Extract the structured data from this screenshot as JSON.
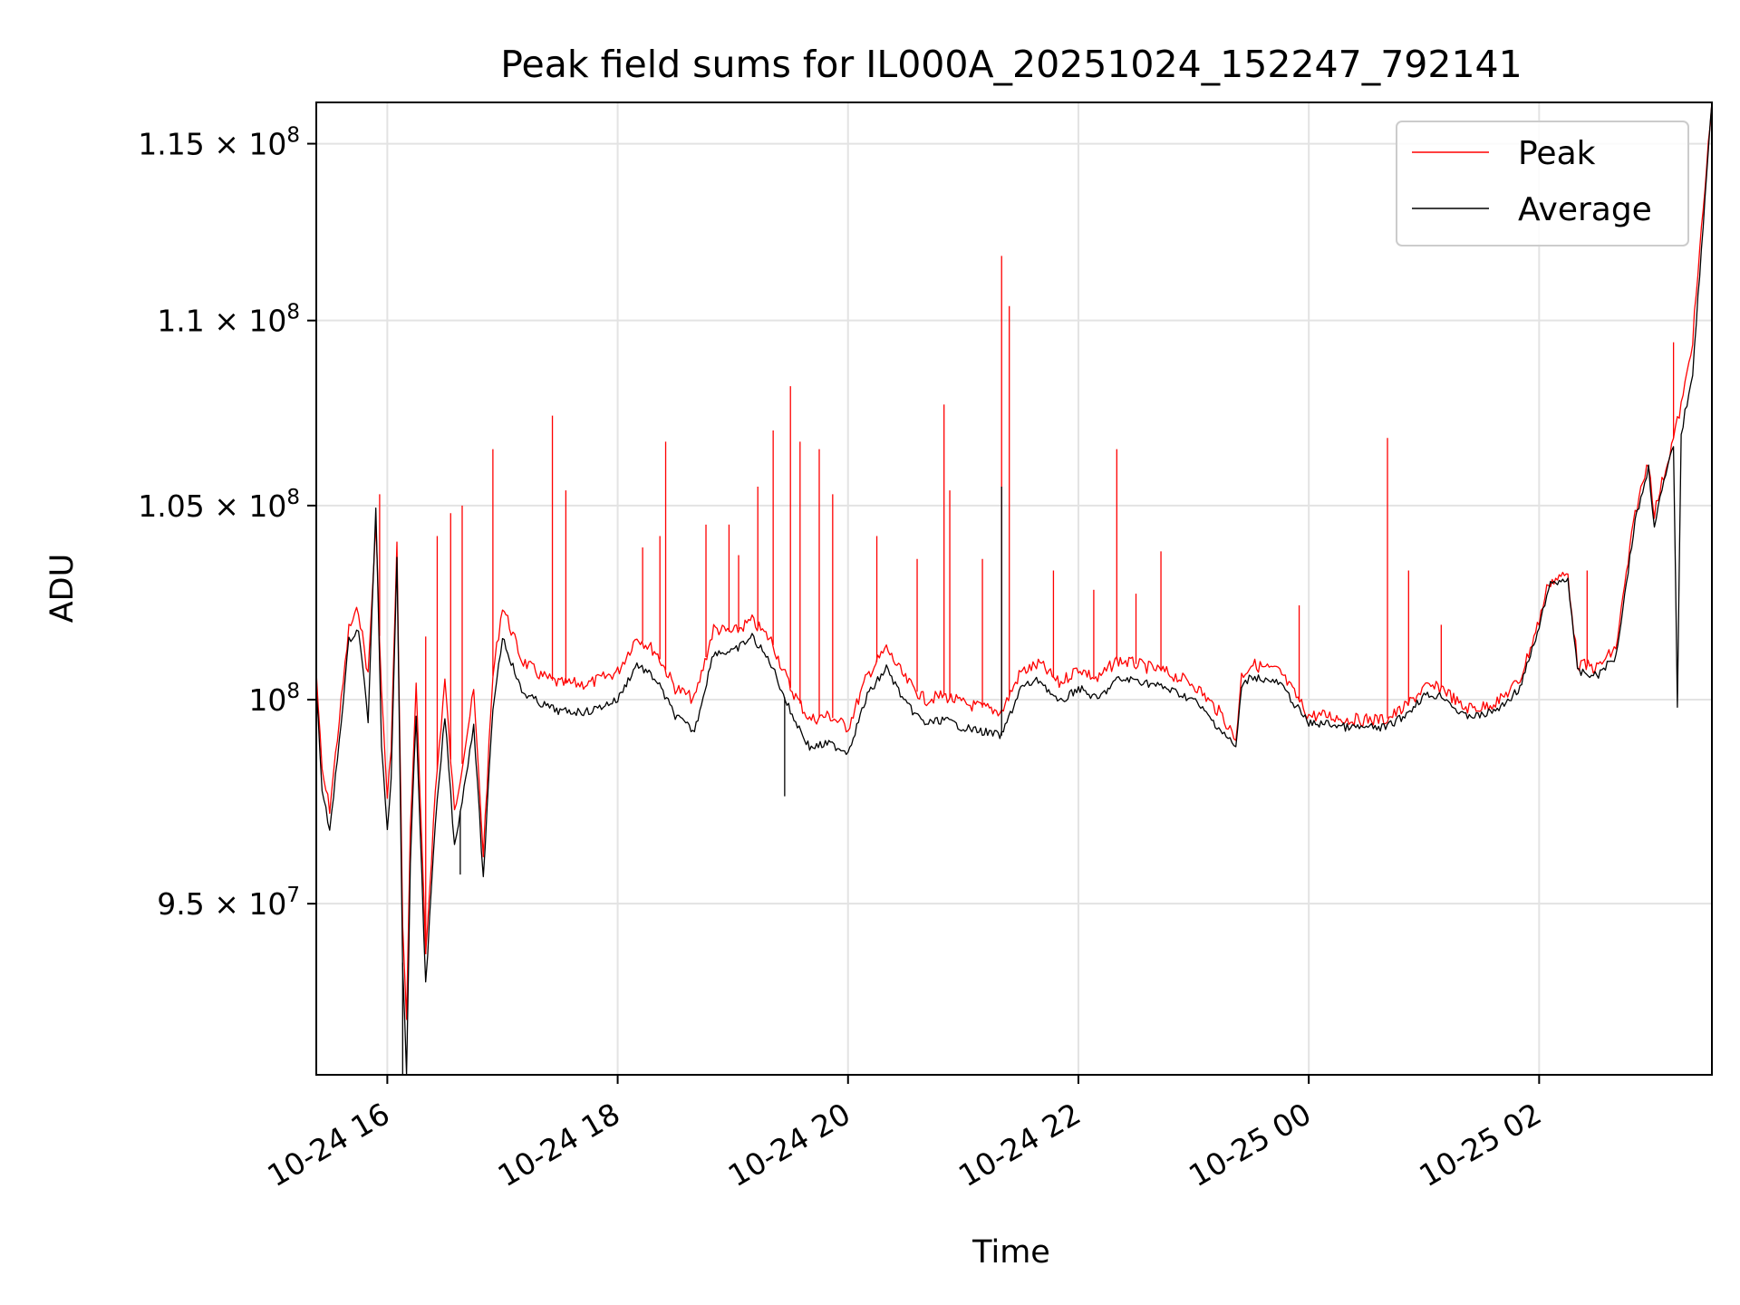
{
  "chart_data": {
    "type": "line",
    "title": "Peak field sums for IL000A_20251024_152247_792141",
    "xlabel": "Time",
    "ylabel": "ADU",
    "x_range": [
      "2025-10-24 15:23",
      "2025-10-25 03:30"
    ],
    "ylim": [
      91000000,
      116200000
    ],
    "grid": true,
    "legend_position": "top-right",
    "x_ticks": [
      {
        "value": "2025-10-24 16:00",
        "label": "10-24 16"
      },
      {
        "value": "2025-10-24 18:00",
        "label": "10-24 18"
      },
      {
        "value": "2025-10-24 20:00",
        "label": "10-24 20"
      },
      {
        "value": "2025-10-24 22:00",
        "label": "10-24 22"
      },
      {
        "value": "2025-10-25 00:00",
        "label": "10-25 00"
      },
      {
        "value": "2025-10-25 02:00",
        "label": "10-25 02"
      }
    ],
    "y_ticks": [
      {
        "value": 95000000,
        "mantissa": "9.5 × 10",
        "exp": "7"
      },
      {
        "value": 100000000,
        "mantissa": "10",
        "exp": "8"
      },
      {
        "value": 105000000,
        "mantissa": "1.05 × 10",
        "exp": "8"
      },
      {
        "value": 110000000,
        "mantissa": "1.1 × 10",
        "exp": "8"
      },
      {
        "value": 115000000,
        "mantissa": "1.15 × 10",
        "exp": "8"
      }
    ],
    "series": [
      {
        "name": "Peak",
        "color": "#ff0000",
        "points": [
          [
            "2025-10-24 15:23",
            100700000
          ],
          [
            "2025-10-24 15:26",
            98200000
          ],
          [
            "2025-10-24 15:30",
            97300000
          ],
          [
            "2025-10-24 15:35",
            99500000
          ],
          [
            "2025-10-24 15:40",
            101800000
          ],
          [
            "2025-10-24 15:45",
            102300000
          ],
          [
            "2025-10-24 15:50",
            100600000
          ],
          [
            "2025-10-24 15:54",
            104500000
          ],
          [
            "2025-10-24 15:57",
            100200000
          ],
          [
            "2025-10-24 16:00",
            97500000
          ],
          [
            "2025-10-24 16:02",
            98800000
          ],
          [
            "2025-10-24 16:05",
            103900000
          ],
          [
            "2025-10-24 16:08",
            94600000
          ],
          [
            "2025-10-24 16:10",
            92200000
          ],
          [
            "2025-10-24 16:12",
            96800000
          ],
          [
            "2025-10-24 16:15",
            100300000
          ],
          [
            "2025-10-24 16:20",
            93800000
          ],
          [
            "2025-10-24 16:25",
            97700000
          ],
          [
            "2025-10-24 16:30",
            100500000
          ],
          [
            "2025-10-24 16:35",
            97200000
          ],
          [
            "2025-10-24 16:40",
            98700000
          ],
          [
            "2025-10-24 16:45",
            100200000
          ],
          [
            "2025-10-24 16:50",
            96200000
          ],
          [
            "2025-10-24 16:55",
            100600000
          ],
          [
            "2025-10-24 17:00",
            102400000
          ],
          [
            "2025-10-24 17:10",
            101000000
          ],
          [
            "2025-10-24 17:20",
            100600000
          ],
          [
            "2025-10-24 17:30",
            100400000
          ],
          [
            "2025-10-24 17:45",
            100400000
          ],
          [
            "2025-10-24 18:00",
            100700000
          ],
          [
            "2025-10-24 18:10",
            101600000
          ],
          [
            "2025-10-24 18:20",
            101200000
          ],
          [
            "2025-10-24 18:30",
            100300000
          ],
          [
            "2025-10-24 18:40",
            100000000
          ],
          [
            "2025-10-24 18:50",
            101800000
          ],
          [
            "2025-10-24 19:00",
            101700000
          ],
          [
            "2025-10-24 19:10",
            102000000
          ],
          [
            "2025-10-24 19:20",
            101500000
          ],
          [
            "2025-10-24 19:30",
            100300000
          ],
          [
            "2025-10-24 19:40",
            99500000
          ],
          [
            "2025-10-24 19:50",
            99600000
          ],
          [
            "2025-10-24 20:00",
            99300000
          ],
          [
            "2025-10-24 20:10",
            100600000
          ],
          [
            "2025-10-24 20:20",
            101300000
          ],
          [
            "2025-10-24 20:30",
            100500000
          ],
          [
            "2025-10-24 20:40",
            100000000
          ],
          [
            "2025-10-24 20:50",
            100100000
          ],
          [
            "2025-10-24 21:00",
            99900000
          ],
          [
            "2025-10-24 21:10",
            99800000
          ],
          [
            "2025-10-24 21:20",
            99700000
          ],
          [
            "2025-10-24 21:30",
            100700000
          ],
          [
            "2025-10-24 21:40",
            100900000
          ],
          [
            "2025-10-24 21:50",
            100400000
          ],
          [
            "2025-10-24 22:00",
            100800000
          ],
          [
            "2025-10-24 22:10",
            100500000
          ],
          [
            "2025-10-24 22:20",
            101000000
          ],
          [
            "2025-10-24 22:30",
            100900000
          ],
          [
            "2025-10-24 22:45",
            100700000
          ],
          [
            "2025-10-24 23:00",
            100400000
          ],
          [
            "2025-10-24 23:15",
            99600000
          ],
          [
            "2025-10-24 23:22",
            99000000
          ],
          [
            "2025-10-24 23:25",
            100600000
          ],
          [
            "2025-10-24 23:30",
            100900000
          ],
          [
            "2025-10-24 23:45",
            100700000
          ],
          [
            "2025-10-25 00:00",
            99600000
          ],
          [
            "2025-10-25 00:10",
            99600000
          ],
          [
            "2025-10-25 00:20",
            99500000
          ],
          [
            "2025-10-25 00:30",
            99500000
          ],
          [
            "2025-10-25 00:40",
            99500000
          ],
          [
            "2025-10-25 00:50",
            99800000
          ],
          [
            "2025-10-25 01:00",
            100300000
          ],
          [
            "2025-10-25 01:10",
            100300000
          ],
          [
            "2025-10-25 01:20",
            99800000
          ],
          [
            "2025-10-25 01:30",
            99800000
          ],
          [
            "2025-10-25 01:40",
            100000000
          ],
          [
            "2025-10-25 01:50",
            100500000
          ],
          [
            "2025-10-25 02:00",
            102000000
          ],
          [
            "2025-10-25 02:05",
            103000000
          ],
          [
            "2025-10-25 02:15",
            103200000
          ],
          [
            "2025-10-25 02:20",
            100900000
          ],
          [
            "2025-10-25 02:30",
            100800000
          ],
          [
            "2025-10-25 02:40",
            101300000
          ],
          [
            "2025-10-25 02:50",
            104800000
          ],
          [
            "2025-10-25 02:57",
            106200000
          ],
          [
            "2025-10-25 03:00",
            104800000
          ],
          [
            "2025-10-25 03:05",
            105800000
          ],
          [
            "2025-10-25 03:10",
            106800000
          ],
          [
            "2025-10-25 03:15",
            107900000
          ],
          [
            "2025-10-25 03:20",
            109500000
          ],
          [
            "2025-10-25 03:30",
            116200000
          ]
        ],
        "spikes": [
          [
            "2025-10-24 15:56",
            105300000
          ],
          [
            "2025-10-24 16:20",
            101600000
          ],
          [
            "2025-10-24 16:26",
            104200000
          ],
          [
            "2025-10-24 16:33",
            104800000
          ],
          [
            "2025-10-24 16:39",
            105000000
          ],
          [
            "2025-10-24 16:55",
            106500000
          ],
          [
            "2025-10-24 17:26",
            107400000
          ],
          [
            "2025-10-24 17:33",
            105400000
          ],
          [
            "2025-10-24 18:13",
            103900000
          ],
          [
            "2025-10-24 18:22",
            104200000
          ],
          [
            "2025-10-24 18:25",
            106700000
          ],
          [
            "2025-10-24 18:46",
            104500000
          ],
          [
            "2025-10-24 18:58",
            104500000
          ],
          [
            "2025-10-24 19:03",
            103700000
          ],
          [
            "2025-10-24 19:13",
            105500000
          ],
          [
            "2025-10-24 19:21",
            107000000
          ],
          [
            "2025-10-24 19:30",
            108200000
          ],
          [
            "2025-10-24 19:35",
            106700000
          ],
          [
            "2025-10-24 19:45",
            106500000
          ],
          [
            "2025-10-24 19:52",
            105300000
          ],
          [
            "2025-10-24 20:15",
            104200000
          ],
          [
            "2025-10-24 20:36",
            103600000
          ],
          [
            "2025-10-24 20:50",
            107700000
          ],
          [
            "2025-10-24 20:53",
            105400000
          ],
          [
            "2025-10-24 21:10",
            103600000
          ],
          [
            "2025-10-24 21:20",
            111800000
          ],
          [
            "2025-10-24 21:24",
            110400000
          ],
          [
            "2025-10-24 21:47",
            103300000
          ],
          [
            "2025-10-24 22:08",
            102800000
          ],
          [
            "2025-10-24 22:20",
            106500000
          ],
          [
            "2025-10-24 22:30",
            102700000
          ],
          [
            "2025-10-24 22:43",
            103800000
          ],
          [
            "2025-10-24 23:55",
            102400000
          ],
          [
            "2025-10-25 00:41",
            106800000
          ],
          [
            "2025-10-25 00:52",
            103300000
          ],
          [
            "2025-10-25 01:09",
            101900000
          ],
          [
            "2025-10-25 02:25",
            103300000
          ],
          [
            "2025-10-25 03:10",
            109400000
          ]
        ]
      },
      {
        "name": "Average",
        "color": "#000000",
        "points": [
          [
            "2025-10-24 15:23",
            100300000
          ],
          [
            "2025-10-24 15:26",
            97800000
          ],
          [
            "2025-10-24 15:30",
            96700000
          ],
          [
            "2025-10-24 15:35",
            99000000
          ],
          [
            "2025-10-24 15:40",
            101500000
          ],
          [
            "2025-10-24 15:45",
            101800000
          ],
          [
            "2025-10-24 15:50",
            99500000
          ],
          [
            "2025-10-24 15:54",
            104900000
          ],
          [
            "2025-10-24 15:57",
            98900000
          ],
          [
            "2025-10-24 16:00",
            96800000
          ],
          [
            "2025-10-24 16:02",
            98100000
          ],
          [
            "2025-10-24 16:05",
            103700000
          ],
          [
            "2025-10-24 16:08",
            93600000
          ],
          [
            "2025-10-24 16:10",
            91000000
          ],
          [
            "2025-10-24 16:12",
            96000000
          ],
          [
            "2025-10-24 16:15",
            99600000
          ],
          [
            "2025-10-24 16:20",
            93100000
          ],
          [
            "2025-10-24 16:25",
            96900000
          ],
          [
            "2025-10-24 16:30",
            99600000
          ],
          [
            "2025-10-24 16:35",
            96400000
          ],
          [
            "2025-10-24 16:40",
            97800000
          ],
          [
            "2025-10-24 16:45",
            99400000
          ],
          [
            "2025-10-24 16:50",
            95600000
          ],
          [
            "2025-10-24 16:55",
            99800000
          ],
          [
            "2025-10-24 17:00",
            101600000
          ],
          [
            "2025-10-24 17:10",
            100200000
          ],
          [
            "2025-10-24 17:20",
            99900000
          ],
          [
            "2025-10-24 17:30",
            99700000
          ],
          [
            "2025-10-24 17:45",
            99700000
          ],
          [
            "2025-10-24 18:00",
            100000000
          ],
          [
            "2025-10-24 18:10",
            100900000
          ],
          [
            "2025-10-24 18:20",
            100500000
          ],
          [
            "2025-10-24 18:30",
            99600000
          ],
          [
            "2025-10-24 18:40",
            99200000
          ],
          [
            "2025-10-24 18:50",
            101200000
          ],
          [
            "2025-10-24 19:00",
            101200000
          ],
          [
            "2025-10-24 19:10",
            101600000
          ],
          [
            "2025-10-24 19:20",
            100900000
          ],
          [
            "2025-10-24 19:30",
            99700000
          ],
          [
            "2025-10-24 19:40",
            98800000
          ],
          [
            "2025-10-24 19:50",
            98900000
          ],
          [
            "2025-10-24 20:00",
            98700000
          ],
          [
            "2025-10-24 20:10",
            100100000
          ],
          [
            "2025-10-24 20:20",
            100800000
          ],
          [
            "2025-10-24 20:30",
            99900000
          ],
          [
            "2025-10-24 20:40",
            99400000
          ],
          [
            "2025-10-24 20:50",
            99500000
          ],
          [
            "2025-10-24 21:00",
            99300000
          ],
          [
            "2025-10-24 21:10",
            99200000
          ],
          [
            "2025-10-24 21:20",
            99100000
          ],
          [
            "2025-10-24 21:30",
            100300000
          ],
          [
            "2025-10-24 21:40",
            100500000
          ],
          [
            "2025-10-24 21:50",
            99900000
          ],
          [
            "2025-10-24 22:00",
            100300000
          ],
          [
            "2025-10-24 22:10",
            100000000
          ],
          [
            "2025-10-24 22:20",
            100500000
          ],
          [
            "2025-10-24 22:30",
            100500000
          ],
          [
            "2025-10-24 22:45",
            100300000
          ],
          [
            "2025-10-24 23:00",
            100000000
          ],
          [
            "2025-10-24 23:15",
            99200000
          ],
          [
            "2025-10-24 23:22",
            98800000
          ],
          [
            "2025-10-24 23:25",
            100300000
          ],
          [
            "2025-10-24 23:30",
            100600000
          ],
          [
            "2025-10-24 23:45",
            100400000
          ],
          [
            "2025-10-25 00:00",
            99400000
          ],
          [
            "2025-10-25 00:10",
            99400000
          ],
          [
            "2025-10-25 00:20",
            99300000
          ],
          [
            "2025-10-25 00:30",
            99300000
          ],
          [
            "2025-10-25 00:40",
            99300000
          ],
          [
            "2025-10-25 00:50",
            99600000
          ],
          [
            "2025-10-25 01:00",
            100100000
          ],
          [
            "2025-10-25 01:10",
            100100000
          ],
          [
            "2025-10-25 01:20",
            99600000
          ],
          [
            "2025-10-25 01:30",
            99600000
          ],
          [
            "2025-10-25 01:40",
            99800000
          ],
          [
            "2025-10-25 01:50",
            100300000
          ],
          [
            "2025-10-25 02:00",
            101800000
          ],
          [
            "2025-10-25 02:05",
            102900000
          ],
          [
            "2025-10-25 02:15",
            103100000
          ],
          [
            "2025-10-25 02:20",
            100700000
          ],
          [
            "2025-10-25 02:30",
            100600000
          ],
          [
            "2025-10-25 02:40",
            101100000
          ],
          [
            "2025-10-25 02:50",
            104600000
          ],
          [
            "2025-10-25 02:57",
            106000000
          ],
          [
            "2025-10-25 03:00",
            104500000
          ],
          [
            "2025-10-25 03:05",
            105600000
          ],
          [
            "2025-10-25 03:10",
            106600000
          ],
          [
            "2025-10-25 03:12",
            99900000
          ],
          [
            "2025-10-25 03:14",
            106900000
          ],
          [
            "2025-10-25 03:20",
            108600000
          ],
          [
            "2025-10-25 03:30",
            116200000
          ]
        ],
        "spikes": [
          [
            "2025-10-24 16:08",
            91000000
          ],
          [
            "2025-10-24 16:38",
            95700000
          ],
          [
            "2025-10-24 19:27",
            97600000
          ],
          [
            "2025-10-24 21:20",
            105500000
          ]
        ]
      }
    ]
  }
}
